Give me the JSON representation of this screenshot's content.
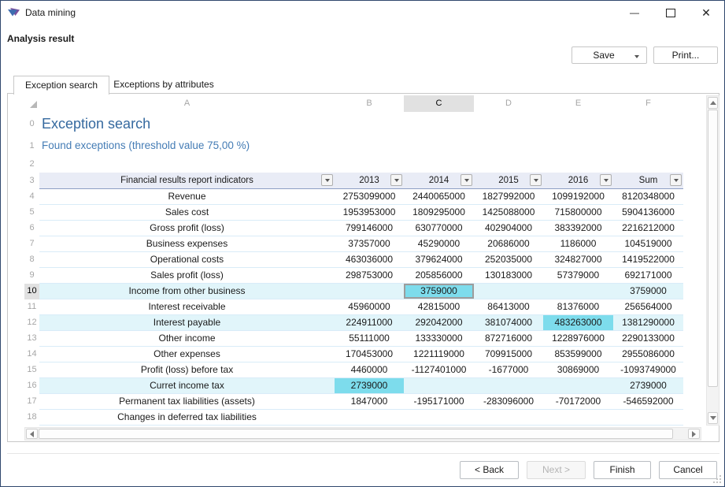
{
  "window": {
    "title": "Data mining",
    "minimize_glyph": "—",
    "close_glyph": "✕"
  },
  "page_title": "Analysis result",
  "toolbar": {
    "save_label": "Save",
    "print_label": "Print..."
  },
  "tabs": [
    {
      "label": "Exception search",
      "active": true
    },
    {
      "label": "Exceptions by attributes",
      "active": false
    }
  ],
  "sheet": {
    "column_letters": [
      "A",
      "B",
      "C",
      "D",
      "E",
      "F"
    ],
    "selected_column_index": 2,
    "selected_row_number": "10",
    "leading_row_numbers": [
      "0",
      "1",
      "2",
      "3"
    ],
    "heading": "Exception search",
    "subheading": "Found exceptions (threshold value 75,00 %)",
    "table": {
      "header": {
        "indicator": "Financial results report indicators",
        "cols": [
          "2013",
          "2014",
          "2015",
          "2016",
          "Sum"
        ]
      },
      "rows": [
        {
          "n": "4",
          "label": "Revenue",
          "values": [
            "2753099000",
            "2440065000",
            "1827992000",
            "1099192000",
            "8120348000"
          ]
        },
        {
          "n": "5",
          "label": "Sales cost",
          "values": [
            "1953953000",
            "1809295000",
            "1425088000",
            "715800000",
            "5904136000"
          ]
        },
        {
          "n": "6",
          "label": "Gross profit (loss)",
          "values": [
            "799146000",
            "630770000",
            "402904000",
            "383392000",
            "2216212000"
          ]
        },
        {
          "n": "7",
          "label": "Business expenses",
          "values": [
            "37357000",
            "45290000",
            "20686000",
            "1186000",
            "104519000"
          ]
        },
        {
          "n": "8",
          "label": "Operational costs",
          "values": [
            "463036000",
            "379624000",
            "252035000",
            "324827000",
            "1419522000"
          ]
        },
        {
          "n": "9",
          "label": "Sales profit (loss)",
          "values": [
            "298753000",
            "205856000",
            "130183000",
            "57379000",
            "692171000"
          ]
        },
        {
          "n": "10",
          "label": "Income from other business",
          "values": [
            "",
            "3759000",
            "",
            "",
            "3759000"
          ],
          "tint": true,
          "highlight_col": 1,
          "active": true
        },
        {
          "n": "11",
          "label": "Interest receivable",
          "values": [
            "45960000",
            "42815000",
            "86413000",
            "81376000",
            "256564000"
          ]
        },
        {
          "n": "12",
          "label": "Interest payable",
          "values": [
            "224911000",
            "292042000",
            "381074000",
            "483263000",
            "1381290000"
          ],
          "tint": true,
          "highlight_col": 3
        },
        {
          "n": "13",
          "label": "Other income",
          "values": [
            "55111000",
            "133330000",
            "872716000",
            "1228976000",
            "2290133000"
          ]
        },
        {
          "n": "14",
          "label": "Other expenses",
          "values": [
            "170453000",
            "1221119000",
            "709915000",
            "853599000",
            "2955086000"
          ]
        },
        {
          "n": "15",
          "label": "Profit (loss) before tax",
          "values": [
            "4460000",
            "-1127401000",
            "-1677000",
            "30869000",
            "-1093749000"
          ]
        },
        {
          "n": "16",
          "label": "Curret income tax",
          "values": [
            "2739000",
            "",
            "",
            "",
            "2739000"
          ],
          "tint": true,
          "highlight_col": 0
        },
        {
          "n": "17",
          "label": "Permanent tax liabilities (assets)",
          "values": [
            "1847000",
            "-195171000",
            "-283096000",
            "-70172000",
            "-546592000"
          ]
        },
        {
          "n": "18",
          "label": "Changes in deferred tax liabilities",
          "values": [
            "",
            "",
            "",
            "",
            ""
          ]
        }
      ]
    }
  },
  "footer": {
    "back_label": "< Back",
    "next_label": "Next >",
    "next_enabled": false,
    "finish_label": "Finish",
    "cancel_label": "Cancel"
  },
  "colors": {
    "heading": "#35699f",
    "subheading": "#447cb5",
    "row_tint": "#e1f5fa",
    "cell_highlight": "#7ddcec",
    "active_cell_border": "#9c9c9c",
    "selection_gray": "#e1e1e1",
    "table_header_bg": "#e9ecf6",
    "table_header_border": "#8e9fc4",
    "gridline": "#d9ecf8"
  }
}
